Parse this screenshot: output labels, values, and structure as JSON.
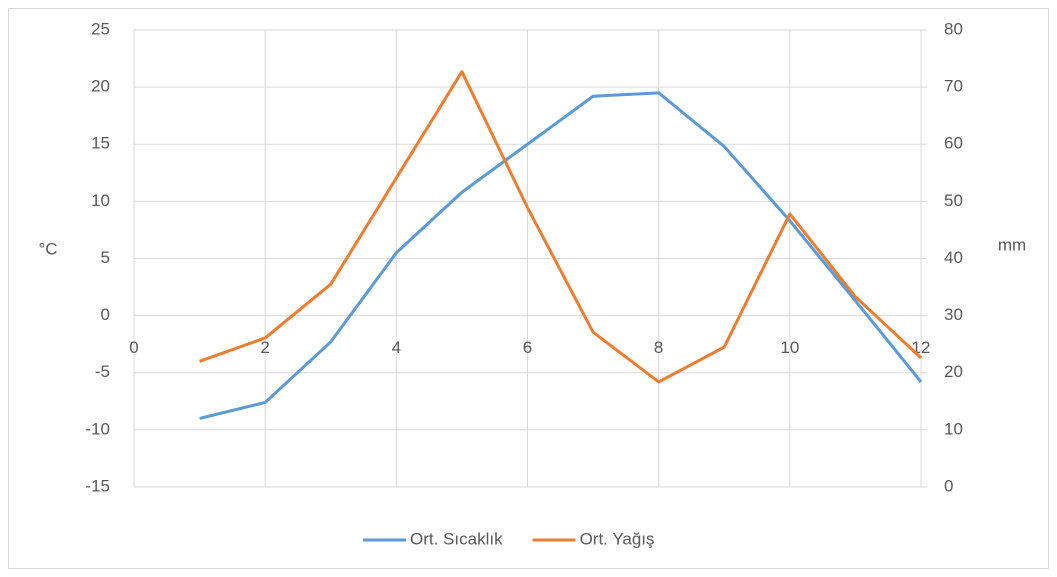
{
  "chart_data": {
    "type": "line",
    "y_label": "°C",
    "y2_label": "mm",
    "x": [
      1,
      2,
      3,
      4,
      5,
      6,
      7,
      8,
      9,
      10,
      11,
      12
    ],
    "series": [
      {
        "name": "Ort. Sıcaklık",
        "color": "#5b9bd5",
        "values": [
          -9.0,
          -7.6,
          -2.3,
          5.5,
          10.8,
          15.0,
          19.2,
          19.5,
          14.8,
          8.3,
          1.3,
          -5.8
        ]
      },
      {
        "name": "Ort. Yağış",
        "color": "#ed7d31",
        "axis": "y2",
        "values": [
          22.0,
          26.1,
          35.5,
          54.1,
          72.7,
          48.9,
          27.1,
          18.4,
          24.5,
          47.8,
          33.3,
          22.6
        ]
      }
    ],
    "xlim": [
      0,
      12
    ],
    "xticks": [
      0,
      2,
      4,
      6,
      8,
      10,
      12
    ],
    "ylim": [
      -15,
      25
    ],
    "yticks": [
      -15,
      -10,
      -5,
      0,
      5,
      10,
      15,
      20,
      25
    ],
    "y2lim": [
      0,
      80
    ],
    "y2ticks": [
      0,
      10,
      20,
      30,
      40,
      50,
      60,
      70,
      80
    ],
    "grid": true,
    "legend": "bottom"
  }
}
